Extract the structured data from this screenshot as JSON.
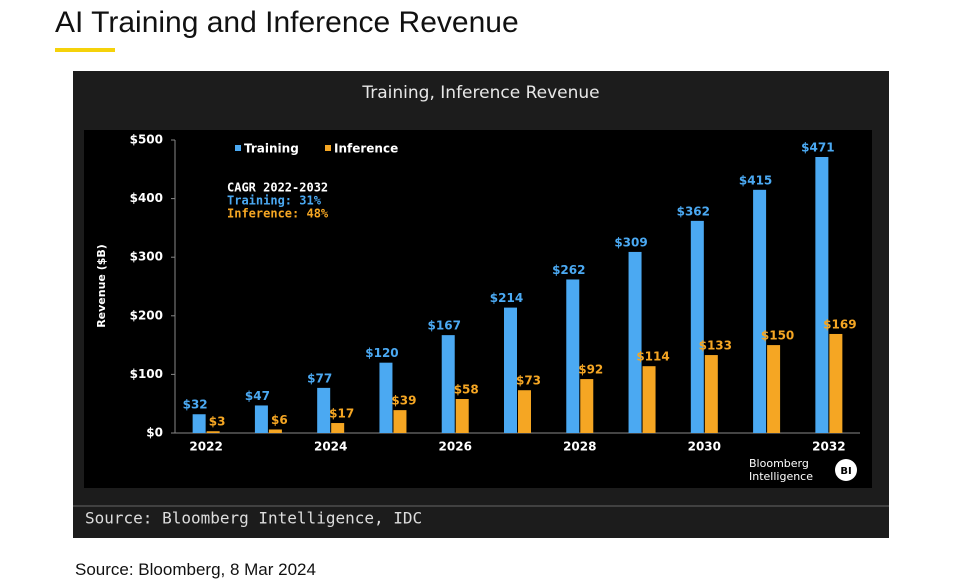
{
  "header": {
    "title": "AI Training and Inference Revenue"
  },
  "chart_data": {
    "type": "bar",
    "title": "Training, Inference Revenue",
    "categories": [
      "2022",
      null,
      "2024",
      null,
      "2026",
      null,
      "2028",
      null,
      "2030",
      null,
      "2032"
    ],
    "series": [
      {
        "name": "Training",
        "color": "#4ba9f2",
        "values": [
          32,
          47,
          77,
          120,
          167,
          214,
          262,
          309,
          362,
          415,
          471
        ],
        "value_labels": [
          "$32",
          "$47",
          "$77",
          "$120",
          "$167",
          "$214",
          "$262",
          "$309",
          "$362",
          "$415",
          "$471"
        ]
      },
      {
        "name": "Inference",
        "color": "#f5a623",
        "values": [
          3,
          6,
          17,
          39,
          58,
          73,
          92,
          114,
          133,
          150,
          169
        ],
        "value_labels": [
          "$3",
          "$6",
          "$17",
          "$39",
          "$58",
          "$73",
          "$92",
          "$114",
          "$133",
          "$150",
          "$169"
        ]
      }
    ],
    "y_label": "Revenue ($B)",
    "ylim": [
      0,
      500
    ],
    "yticks": [
      {
        "value": 0,
        "label": "$0"
      },
      {
        "value": 100,
        "label": "$100"
      },
      {
        "value": 200,
        "label": "$200"
      },
      {
        "value": 300,
        "label": "$300"
      },
      {
        "value": 400,
        "label": "$400"
      },
      {
        "value": 500,
        "label": "$500"
      }
    ],
    "annotations": [
      "CAGR 2022-2032",
      "Training: 31%",
      "Inference: 48%"
    ],
    "logo": {
      "lines": [
        "Bloomberg",
        "Intelligence"
      ],
      "badge": "BI"
    },
    "source": "Source: Bloomberg Intelligence, IDC",
    "legend": "top"
  },
  "footer": {
    "source": "Source: Bloomberg, 8 Mar 2024"
  }
}
